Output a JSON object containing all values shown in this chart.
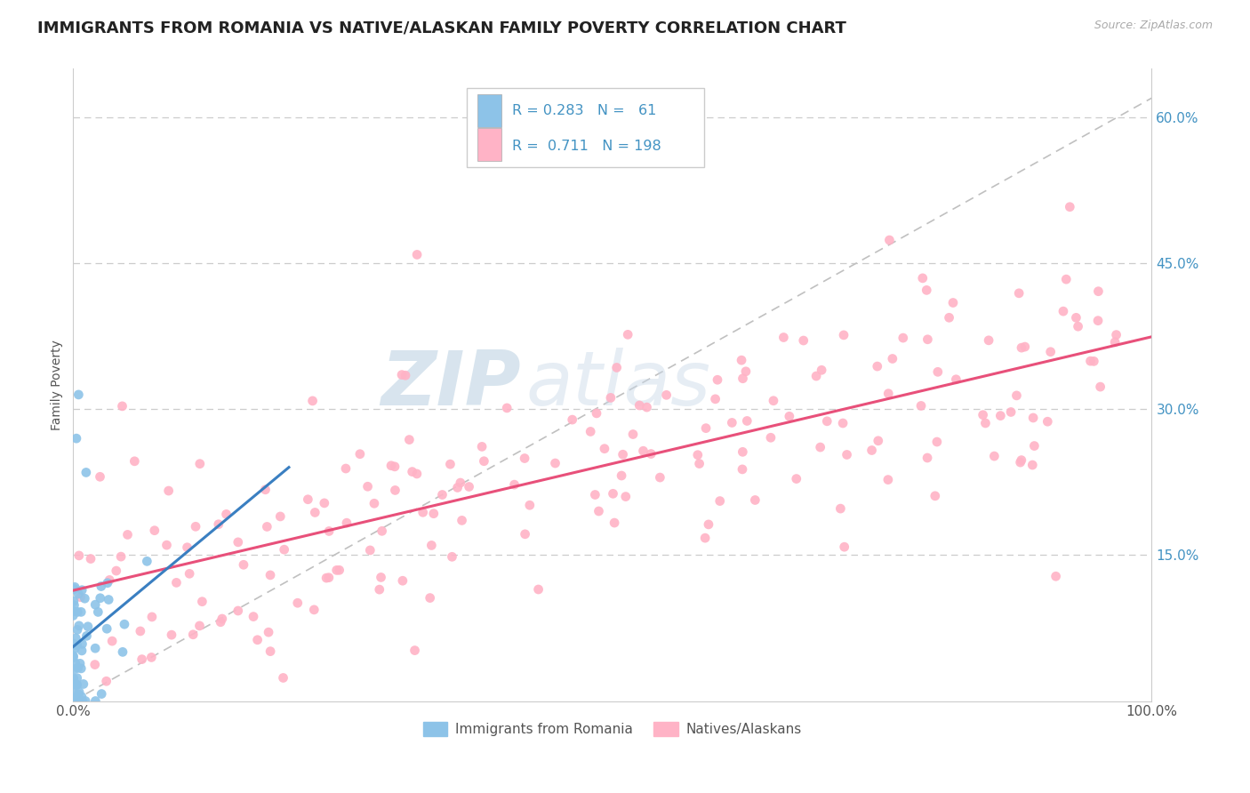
{
  "title": "IMMIGRANTS FROM ROMANIA VS NATIVE/ALASKAN FAMILY POVERTY CORRELATION CHART",
  "source": "Source: ZipAtlas.com",
  "ylabel": "Family Poverty",
  "xlim": [
    0,
    1.0
  ],
  "ylim": [
    0,
    0.65
  ],
  "xtick_labels": [
    "0.0%",
    "100.0%"
  ],
  "ytick_labels": [
    "15.0%",
    "30.0%",
    "45.0%",
    "60.0%"
  ],
  "ytick_values": [
    0.15,
    0.3,
    0.45,
    0.6
  ],
  "watermark_zip": "ZIP",
  "watermark_atlas": "atlas",
  "color_blue": "#8dc3e8",
  "color_pink": "#ffb3c6",
  "color_blue_line": "#3a7fc1",
  "color_pink_line": "#e8507a",
  "color_blue_text": "#4393c3",
  "grid_color": "#cccccc",
  "title_fontsize": 13,
  "axis_label_fontsize": 10,
  "tick_fontsize": 11,
  "source_fontsize": 9,
  "background": "#ffffff",
  "n_blue": 61,
  "n_pink": 198,
  "r_blue": 0.283,
  "r_pink": 0.711
}
